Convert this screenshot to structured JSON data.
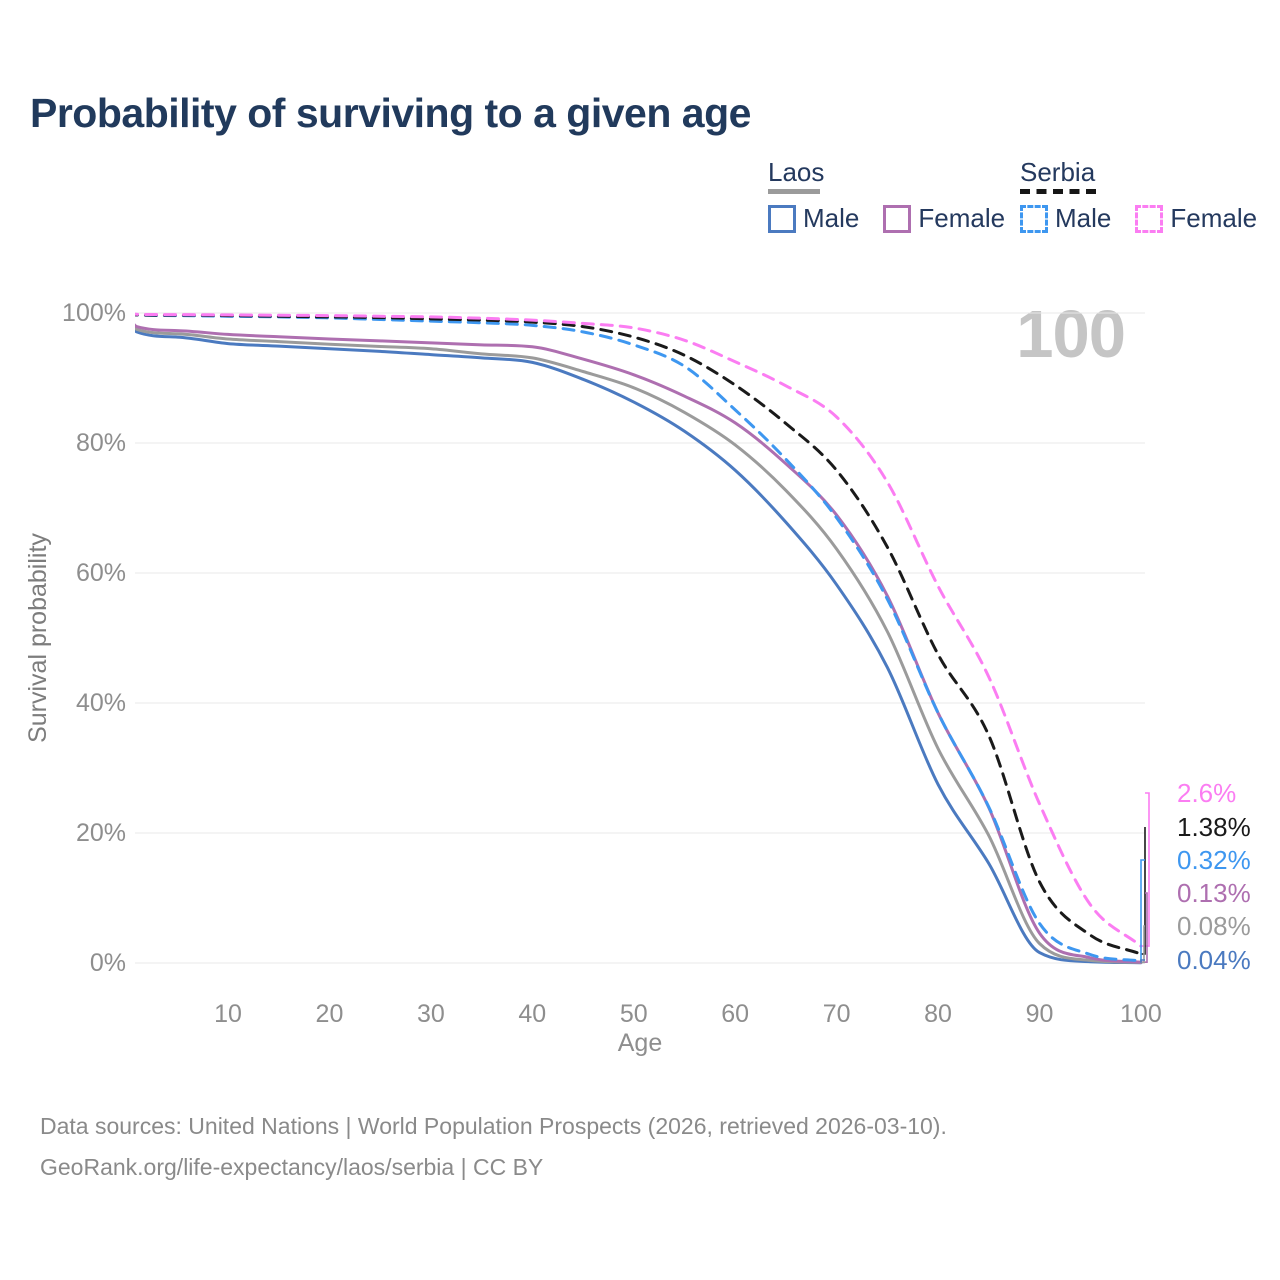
{
  "title": "Probability of surviving to a given age",
  "watermark": "100",
  "legend": {
    "groups": [
      {
        "country": "Laos",
        "line_style": "solid",
        "combined_color": "#9b9b9b",
        "items": [
          {
            "label": "Male",
            "color": "#4b7ac0"
          },
          {
            "label": "Female",
            "color": "#ae6fb0"
          }
        ]
      },
      {
        "country": "Serbia",
        "line_style": "dashed",
        "combined_color": "#161616",
        "items": [
          {
            "label": "Male",
            "color": "#3e97f0"
          },
          {
            "label": "Female",
            "color": "#fb7df2"
          }
        ]
      }
    ]
  },
  "chart_data": {
    "type": "line",
    "title": "Probability of surviving to a given age",
    "xlabel": "Age",
    "ylabel": "Survival probability",
    "xlim": [
      0,
      100
    ],
    "ylim": [
      0,
      100
    ],
    "grid": "horizontal",
    "legend_position": "top-right",
    "x_ticks": [
      10,
      20,
      30,
      40,
      50,
      60,
      70,
      80,
      90,
      100
    ],
    "y_ticks": [
      "0%",
      "20%",
      "40%",
      "60%",
      "80%",
      "100%"
    ],
    "x": [
      0,
      1,
      5,
      10,
      15,
      20,
      25,
      30,
      35,
      40,
      45,
      50,
      55,
      60,
      65,
      70,
      75,
      80,
      85,
      90,
      95,
      100
    ],
    "series": [
      {
        "name": "Laos Male",
        "country": "Laos",
        "group": "Male",
        "style": "solid",
        "color": "#4b7ac0",
        "end_label": "0.04%",
        "values": [
          100,
          97.1,
          96.3,
          95.3,
          94.9,
          94.5,
          94.1,
          93.6,
          93.1,
          92.4,
          89.8,
          86.3,
          81.8,
          75.8,
          67.8,
          58.2,
          45.5,
          27.5,
          15.3,
          1.6,
          0.2,
          0.04
        ]
      },
      {
        "name": "Laos",
        "country": "Laos",
        "group": "Both sexes",
        "style": "solid",
        "color": "#9b9b9b",
        "end_label": "0.08%",
        "values": [
          100,
          97.5,
          96.8,
          96.0,
          95.6,
          95.2,
          94.85,
          94.5,
          93.7,
          93.1,
          91.0,
          88.5,
          84.7,
          79.7,
          72.7,
          63.7,
          51.0,
          33.0,
          19.6,
          3.0,
          0.4,
          0.08
        ]
      },
      {
        "name": "Laos Female",
        "country": "Laos",
        "group": "Female",
        "style": "solid",
        "color": "#ae6fb0",
        "end_label": "0.13%",
        "values": [
          100,
          97.9,
          97.3,
          96.7,
          96.35,
          96.0,
          95.7,
          95.4,
          95.1,
          94.8,
          92.9,
          90.5,
          87.2,
          83.1,
          76.8,
          68.9,
          56.5,
          38.5,
          23.9,
          4.6,
          0.8,
          0.13
        ]
      },
      {
        "name": "Serbia Male",
        "country": "Serbia",
        "group": "Male",
        "style": "dashed",
        "color": "#3e97f0",
        "end_label": "0.32%",
        "values": [
          100,
          99.7,
          99.6,
          99.5,
          99.4,
          99.25,
          99.0,
          98.75,
          98.5,
          98.1,
          97.1,
          95.1,
          91.8,
          85.1,
          77.5,
          68.5,
          56.0,
          38.5,
          24.0,
          6.1,
          1.3,
          0.32
        ]
      },
      {
        "name": "Serbia",
        "country": "Serbia",
        "group": "Both sexes",
        "style": "dashed",
        "color": "#1a1a1a",
        "end_label": "1.38%",
        "values": [
          100,
          99.7,
          99.68,
          99.6,
          99.5,
          99.4,
          99.3,
          99.1,
          98.9,
          98.6,
          97.9,
          96.3,
          93.5,
          88.9,
          83.0,
          75.8,
          64.0,
          47.5,
          35.0,
          12.5,
          4.3,
          1.38
        ]
      },
      {
        "name": "Serbia Female",
        "country": "Serbia",
        "group": "Female",
        "style": "dashed",
        "color": "#fb7df2",
        "end_label": "2.6%",
        "values": [
          100,
          99.8,
          99.75,
          99.7,
          99.65,
          99.6,
          99.5,
          99.4,
          99.2,
          98.9,
          98.4,
          97.7,
          95.8,
          92.5,
          88.8,
          84.0,
          74.0,
          58.0,
          44.0,
          24.5,
          9.0,
          2.6
        ]
      }
    ]
  },
  "footer": {
    "line1": "Data sources: United Nations | World Population Prospects (2026, retrieved 2026-03-10).",
    "line2": "GeoRank.org/life-expectancy/laos/serbia | CC BY"
  }
}
